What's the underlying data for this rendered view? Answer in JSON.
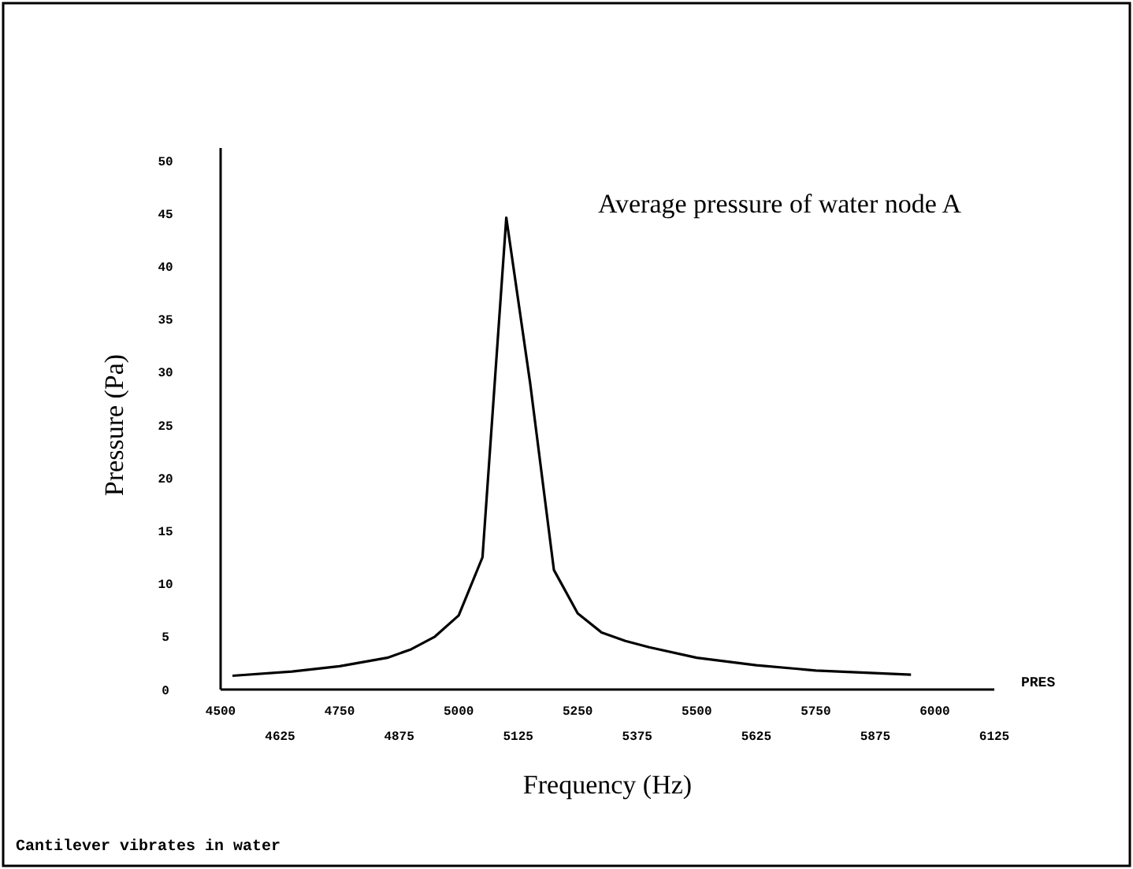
{
  "chart_data": {
    "type": "line",
    "title": "Average pressure of water node A",
    "xlabel": "Frequency (Hz)",
    "ylabel": "Pressure (Pa)",
    "annotations": [
      "Cantilever vibrates in water"
    ],
    "xlim": [
      4500,
      6125
    ],
    "xticks": [
      4500,
      4750,
      5000,
      5250,
      5500,
      5750,
      6000
    ],
    "x2lim": [
      4500,
      6125
    ],
    "x2ticks": [
      4625,
      4875,
      5125,
      5375,
      5625,
      5875,
      6125
    ],
    "ylim": [
      0,
      50
    ],
    "yticks": [
      0,
      5,
      10,
      15,
      20,
      25,
      30,
      35,
      40,
      45,
      50
    ],
    "grid": false,
    "legend": "right",
    "marker": "none",
    "line_style": "solid",
    "x": [
      4525,
      4650,
      4750,
      4850,
      4900,
      4950,
      5000,
      5050,
      5100,
      5150,
      5200,
      5250,
      5300,
      5350,
      5400,
      5500,
      5625,
      5750,
      5950
    ],
    "series": [
      {
        "name": "PRES",
        "color": "#000000",
        "values": [
          1.3,
          1.7,
          2.2,
          3.0,
          3.8,
          5.0,
          7.0,
          12.5,
          44.6,
          29,
          11.3,
          7.2,
          5.4,
          4.6,
          4.0,
          3.0,
          2.3,
          1.8,
          1.4
        ]
      }
    ]
  }
}
